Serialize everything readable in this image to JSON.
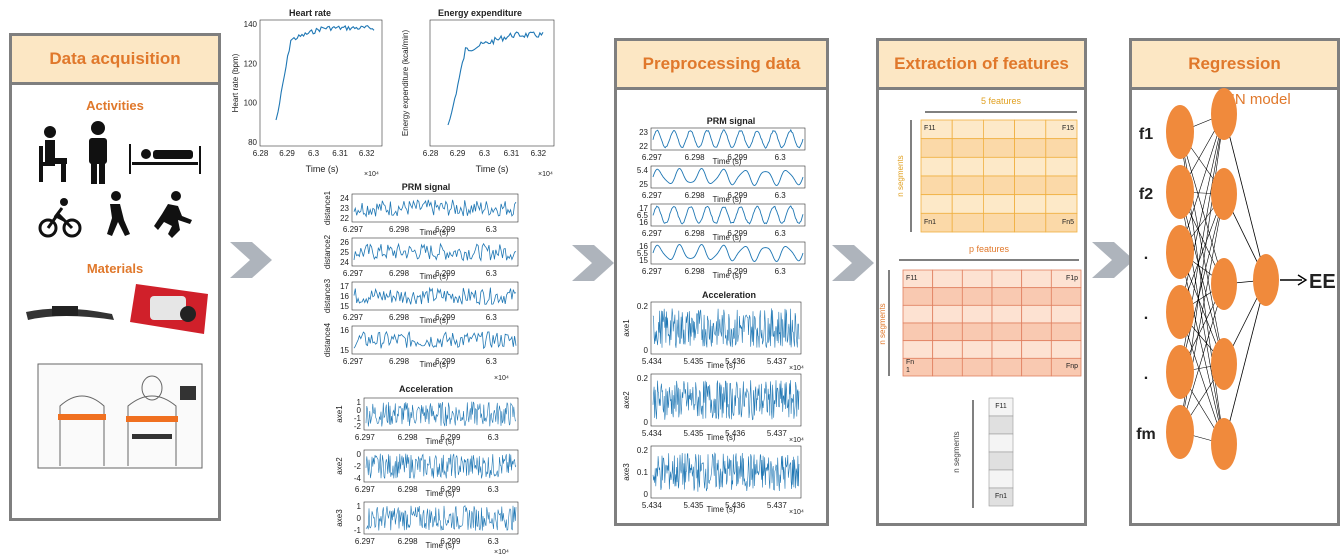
{
  "colors": {
    "accent": "#e0782b",
    "header_bg": "#fce7c4",
    "border": "#7f7f7f",
    "signal": "#1f77b4",
    "node": "#f08a3c"
  },
  "panels": {
    "acquisition": {
      "title": "Data acquisition",
      "activities": "Activities",
      "materials": "Materials"
    },
    "preprocessing": {
      "title": "Preprocessing data"
    },
    "extraction": {
      "title": "Extraction of features"
    },
    "regression": {
      "title": "Regression",
      "model": "ANN model",
      "inputs": [
        "f1",
        "f2",
        ".",
        ".",
        ".",
        "fm"
      ],
      "output": "EE"
    }
  },
  "raw_charts": {
    "heart_rate": {
      "title": "Heart rate",
      "ylabel": "Heart rate (bpm)",
      "xlabel": "Time (s)",
      "yticks": [
        "140",
        "120",
        "100",
        "80"
      ],
      "xticks": [
        "6.28",
        "6.29",
        "6.3",
        "6.31",
        "6.32"
      ],
      "xexp": "×10⁴"
    },
    "energy": {
      "title": "Energy expenditure",
      "ylabel": "Energy expenditure (kcal/min)",
      "xlabel": "Time (s)",
      "xticks": [
        "6.28",
        "6.29",
        "6.3",
        "6.31",
        "6.32"
      ],
      "xexp": "×10⁴"
    },
    "prm": {
      "title": "PRM signal",
      "xlabel": "Time (s)",
      "xticks": [
        "6.297",
        "6.298",
        "6.299",
        "6.3"
      ],
      "xexp": "×10⁴",
      "rows": [
        {
          "ylabel": "distance1",
          "yticks": [
            "24",
            "23",
            "22"
          ]
        },
        {
          "ylabel": "distance2",
          "yticks": [
            "26",
            "25",
            "24"
          ]
        },
        {
          "ylabel": "distance3",
          "yticks": [
            "17",
            "16",
            "15"
          ]
        },
        {
          "ylabel": "distance4",
          "yticks": [
            "16",
            "15"
          ]
        }
      ]
    },
    "accel": {
      "title": "Acceleration",
      "xlabel": "Time (s)",
      "xticks": [
        "6.297",
        "6.298",
        "6.299",
        "6.3"
      ],
      "xexp": "×10⁴",
      "rows": [
        {
          "ylabel": "axe1",
          "yticks": [
            "1",
            "0",
            "-1",
            "-2"
          ]
        },
        {
          "ylabel": "axe2",
          "yticks": [
            "0",
            "-2",
            "-4"
          ]
        },
        {
          "ylabel": "axe3",
          "yticks": [
            "1",
            "0",
            "-1"
          ]
        }
      ]
    }
  },
  "pre_charts": {
    "prm": {
      "title": "PRM signal",
      "xlabel": "Time (s)",
      "xticks": [
        "6.297",
        "6.298",
        "6.299",
        "6.3"
      ],
      "yticks": [
        [
          "23",
          "22"
        ],
        [
          "5.4",
          "25"
        ],
        [
          "17",
          "6.5",
          "16"
        ],
        [
          "16",
          "5.5",
          "15"
        ]
      ]
    },
    "accel": {
      "title": "Acceleration",
      "xlabel": "Time (s)",
      "xticks": [
        "5.434",
        "5.435",
        "5.436",
        "5.437"
      ],
      "xexp": "×10⁴",
      "rows": [
        {
          "ylabel": "axe1",
          "yticks": [
            "0.2",
            "0"
          ]
        },
        {
          "ylabel": "axe2",
          "yticks": [
            "0.2",
            "0"
          ]
        },
        {
          "ylabel": "axe3",
          "yticks": [
            "0.2",
            "0.1",
            "0"
          ]
        }
      ]
    }
  },
  "features": {
    "grid1": {
      "top": "5 features",
      "side": "n segments",
      "tl": "F11",
      "tr": "F15",
      "bl": "Fn1",
      "br": "Fn5"
    },
    "grid2": {
      "top": "p features",
      "side": "n segments",
      "tl": "F11",
      "tr": "F1p",
      "bl": "Fn\n1",
      "br": "Fnp"
    },
    "grid3": {
      "side": "n segments",
      "top": "F11",
      "bottom": "Fn1"
    }
  }
}
